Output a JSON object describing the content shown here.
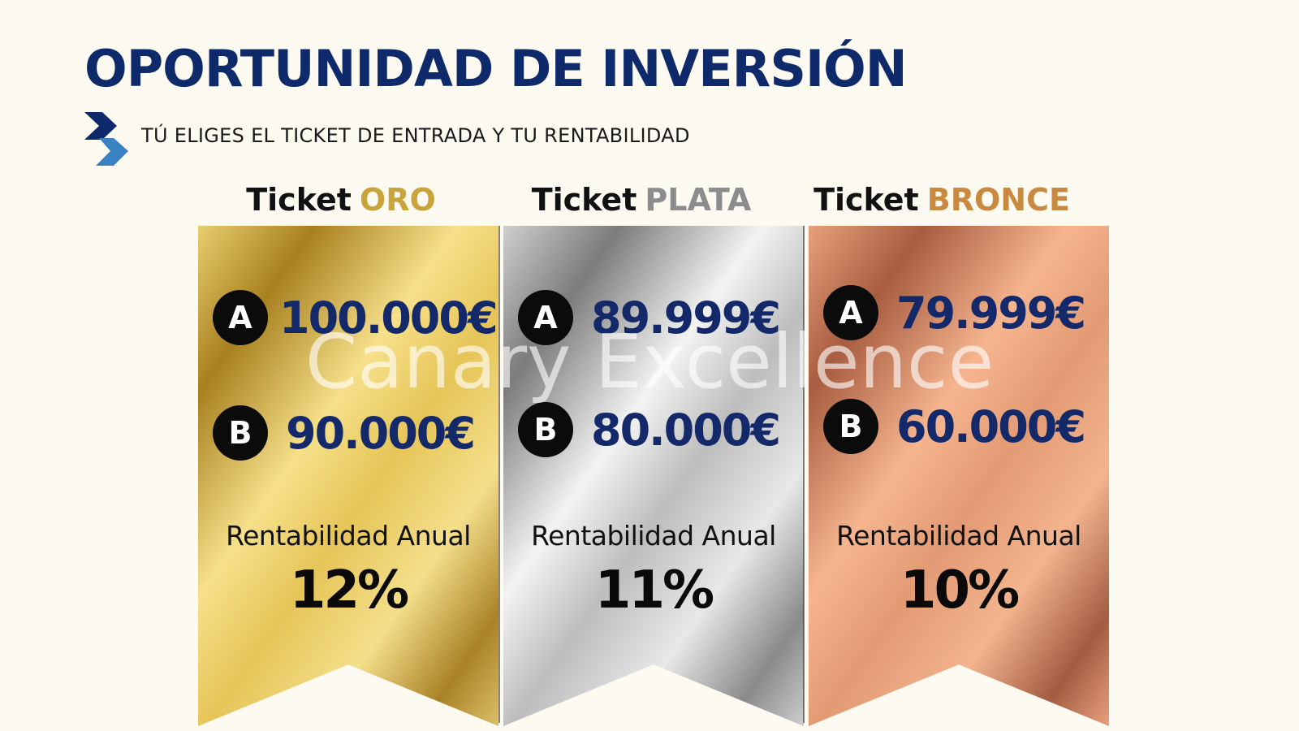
{
  "title": "OPORTUNIDAD DE INVERSIÓN",
  "subtitle": "TÚ ELIGES EL TICKET DE ENTRADA Y TU RENTABILIDAD",
  "watermark": "Canary Excellence",
  "colors": {
    "title": "#0e2a6b",
    "amount": "#13296a",
    "oro": "#c9a43b",
    "plata": "#8c8c8c",
    "bronce": "#c9893f",
    "arrow_dark": "#0e2a6b",
    "arrow_light": "#3b82c4"
  },
  "tickets": [
    {
      "prefix": "Ticket",
      "level": "ORO",
      "options": [
        {
          "badge": "A",
          "amount": "100.000€"
        },
        {
          "badge": "B",
          "amount": "90.000€"
        }
      ],
      "rent_label": "Rentabilidad Anual",
      "rent_value": "12%"
    },
    {
      "prefix": "Ticket",
      "level": "PLATA",
      "options": [
        {
          "badge": "A",
          "amount": "89.999€"
        },
        {
          "badge": "B",
          "amount": "80.000€"
        }
      ],
      "rent_label": "Rentabilidad Anual",
      "rent_value": "11%"
    },
    {
      "prefix": "Ticket",
      "level": "BRONCE",
      "options": [
        {
          "badge": "A",
          "amount": "79.999€"
        },
        {
          "badge": "B",
          "amount": "60.000€"
        }
      ],
      "rent_label": "Rentabilidad Anual",
      "rent_value": "10%"
    }
  ]
}
